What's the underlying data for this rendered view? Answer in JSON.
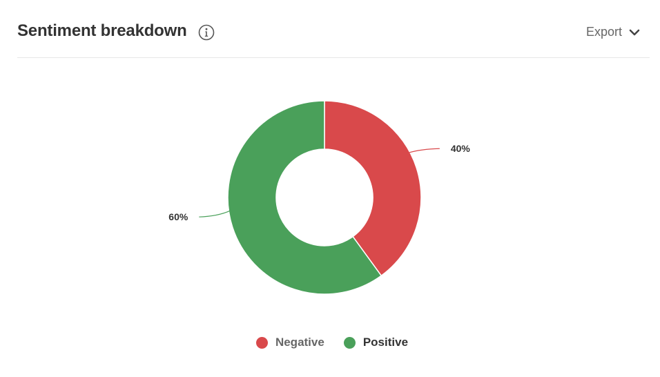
{
  "header": {
    "title": "Sentiment breakdown",
    "info_icon": "info-icon",
    "export_label": "Export",
    "export_icon": "chevron-down-icon"
  },
  "chart_data": {
    "type": "pie",
    "variant": "donut",
    "start_angle_deg": 0,
    "direction": "clockwise",
    "slices": [
      {
        "label": "Negative",
        "value": 40,
        "display": "40%",
        "color": "#d9494b"
      },
      {
        "label": "Positive",
        "value": 60,
        "display": "60%",
        "color": "#4aa05a"
      }
    ],
    "legend": {
      "placement": "bottom",
      "items": [
        {
          "label": "Negative",
          "color": "#d9494b"
        },
        {
          "label": "Positive",
          "color": "#4aa05a"
        }
      ]
    }
  }
}
